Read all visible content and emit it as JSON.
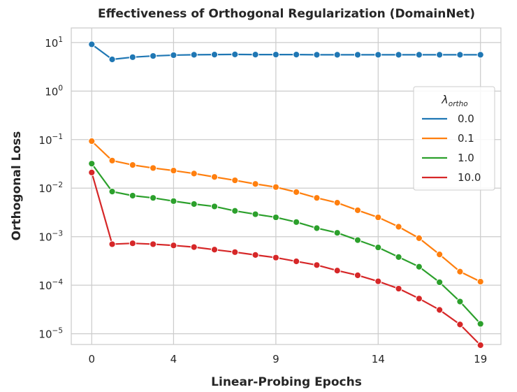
{
  "chart_data": {
    "type": "line",
    "title": "Effectiveness of Orthogonal Regularization (DomainNet)",
    "xlabel": "Linear-Probing Epochs",
    "ylabel": "Orthogonal Loss",
    "yscale": "log",
    "ylim": [
      6e-06,
      20
    ],
    "xlim": [
      -1,
      20
    ],
    "xticks": [
      0,
      4,
      9,
      14,
      19
    ],
    "yticks": [
      {
        "value": 10,
        "base": "10",
        "exp": "1"
      },
      {
        "value": 1,
        "base": "10",
        "exp": "0"
      },
      {
        "value": 0.1,
        "base": "10",
        "exp": "−1"
      },
      {
        "value": 0.01,
        "base": "10",
        "exp": "−2"
      },
      {
        "value": 0.001,
        "base": "10",
        "exp": "−3"
      },
      {
        "value": 0.0001,
        "base": "10",
        "exp": "−4"
      },
      {
        "value": 1e-05,
        "base": "10",
        "exp": "−5"
      }
    ],
    "grid": true,
    "x": [
      0,
      1,
      2,
      3,
      4,
      5,
      6,
      7,
      8,
      9,
      10,
      11,
      12,
      13,
      14,
      15,
      16,
      17,
      18,
      19
    ],
    "legend": {
      "title": "λ",
      "title_subscript": "ortho",
      "position": "right"
    },
    "series": [
      {
        "name": "0.0",
        "color": "#1f77b4",
        "values": [
          9.2,
          4.5,
          5.0,
          5.3,
          5.5,
          5.6,
          5.65,
          5.7,
          5.65,
          5.65,
          5.65,
          5.6,
          5.6,
          5.6,
          5.6,
          5.6,
          5.6,
          5.6,
          5.6,
          5.6
        ]
      },
      {
        "name": "0.1",
        "color": "#ff7f0e",
        "values": [
          0.093,
          0.037,
          0.03,
          0.026,
          0.023,
          0.02,
          0.017,
          0.0145,
          0.0122,
          0.0105,
          0.0083,
          0.0063,
          0.005,
          0.0035,
          0.0025,
          0.0016,
          0.00093,
          0.00043,
          0.00019,
          0.000118
        ]
      },
      {
        "name": "1.0",
        "color": "#2ca02c",
        "values": [
          0.032,
          0.0085,
          0.007,
          0.0063,
          0.0054,
          0.0047,
          0.0042,
          0.0034,
          0.0029,
          0.0025,
          0.002,
          0.0015,
          0.0012,
          0.00085,
          0.0006,
          0.00038,
          0.00024,
          0.000115,
          4.6e-05,
          1.6e-05
        ]
      },
      {
        "name": "10.0",
        "color": "#d62728",
        "values": [
          0.021,
          0.0007,
          0.00073,
          0.0007,
          0.00066,
          0.00061,
          0.00054,
          0.00048,
          0.00042,
          0.00037,
          0.00031,
          0.00026,
          0.0002,
          0.00016,
          0.00012,
          8.5e-05,
          5.3e-05,
          3.1e-05,
          1.55e-05,
          5.8e-06
        ]
      }
    ]
  }
}
